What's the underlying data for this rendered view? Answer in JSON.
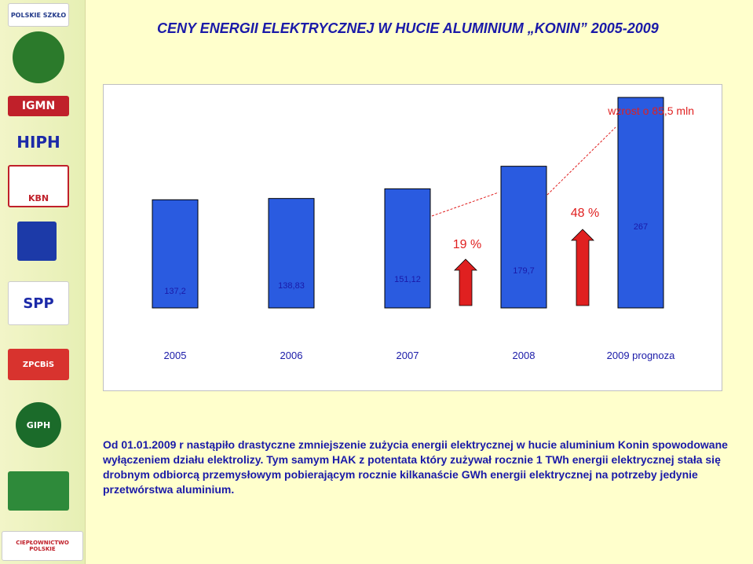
{
  "title": "CENY ENERGII ELEKTRYCZNEJ  W HUCIE ALUMINIUM „KONIN”  2005-2009",
  "colors": {
    "bar": "#2a5be0",
    "accent_red": "#e02020",
    "text_blue": "#1a1aa8"
  },
  "logos": [
    {
      "icon": "polskie-szklo-logo",
      "text": "POLSKIE SZKŁO"
    },
    {
      "icon": "izba-energetyki-logo",
      "text": ""
    },
    {
      "icon": "igmn-logo",
      "text": "IGMN"
    },
    {
      "icon": "hiph-logo",
      "text": "HIPH"
    },
    {
      "icon": "kbn-logo",
      "text": "KBN"
    },
    {
      "icon": "industry-logo",
      "text": ""
    },
    {
      "icon": "spp-logo",
      "text": "SPP"
    },
    {
      "icon": "zpcbis-logo",
      "text": "ZPCBiS"
    },
    {
      "icon": "giph-logo",
      "text": "GIPH"
    },
    {
      "icon": "forest-logo",
      "text": ""
    },
    {
      "icon": "izba-cieplownictwo-logo",
      "text": "CIEPŁOWNICTWO POLSKIE"
    }
  ],
  "chart_data": {
    "type": "bar",
    "categories": [
      "2005",
      "2006",
      "2007",
      "2008",
      "2009 prognoza"
    ],
    "values": [
      137.2,
      138.83,
      151.12,
      179.7,
      267
    ],
    "value_labels": [
      "137,2",
      "138,83",
      "151,12",
      "179,7",
      "267"
    ],
    "ylim": [
      0,
      275
    ],
    "grid": false,
    "annotations": {
      "increase_2008": "19 %",
      "increase_2009": "48 %",
      "total_increase": "wzrost o 85,5 mln"
    }
  },
  "paragraph": "Od 01.01.2009 r nastąpiło drastyczne zmniejszenie zużycia energii elektrycznej w hucie aluminium Konin spowodowane wyłączeniem działu elektrolizy. Tym samym HAK z potentata który zużywał rocznie 1 TWh energii elektrycznej stała się drobnym odbiorcą przemysłowym pobierającym rocznie kilkanaście GWh energii elektrycznej na potrzeby jedynie przetwórstwa aluminium."
}
